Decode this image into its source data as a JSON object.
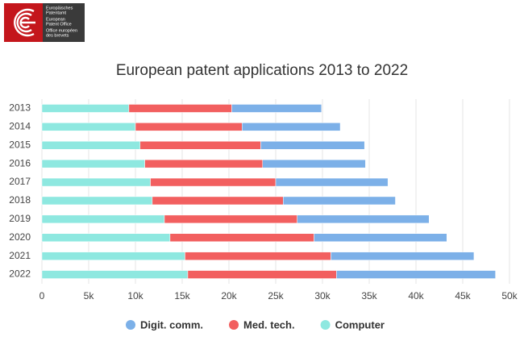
{
  "logo": {
    "lines": [
      "Europäisches",
      "Patentamt",
      "European",
      "Patent Office",
      "Office européen",
      "des brevets"
    ]
  },
  "chart_data": {
    "type": "stacked-barh",
    "title": "European patent applications 2013 to 2022",
    "categories": [
      "2013",
      "2014",
      "2015",
      "2016",
      "2017",
      "2018",
      "2019",
      "2020",
      "2021",
      "2022"
    ],
    "series": [
      {
        "name": "Digit. comm.",
        "color": "#7cb0e8",
        "values": [
          9600,
          10500,
          11100,
          11000,
          12000,
          12000,
          14100,
          14200,
          15300,
          17000
        ]
      },
      {
        "name": "Med. tech.",
        "color": "#f25f5f",
        "values": [
          11000,
          11400,
          12900,
          12600,
          13400,
          14000,
          14200,
          15400,
          15600,
          15900
        ]
      },
      {
        "name": "Computer",
        "color": "#8ee8e0",
        "values": [
          9300,
          10000,
          10500,
          11000,
          11600,
          11800,
          13100,
          13700,
          15300,
          15600
        ]
      }
    ],
    "stack_order": [
      2,
      1,
      0
    ],
    "xlim": [
      0,
      50000
    ],
    "xticks": [
      0,
      {
        "value": 5000,
        "label": "5k"
      },
      {
        "value": 10000,
        "label": "10k"
      },
      {
        "value": 15000,
        "label": "15k"
      },
      {
        "value": 20000,
        "label": "20k"
      },
      {
        "value": 25000,
        "label": "25k"
      },
      {
        "value": 30000,
        "label": "30k"
      },
      {
        "value": 35000,
        "label": "35k"
      },
      {
        "value": 40000,
        "label": "40k"
      },
      {
        "value": 45000,
        "label": "45k"
      },
      {
        "value": 50000,
        "label": "50k"
      }
    ],
    "grid": true,
    "legend": "bottom"
  }
}
